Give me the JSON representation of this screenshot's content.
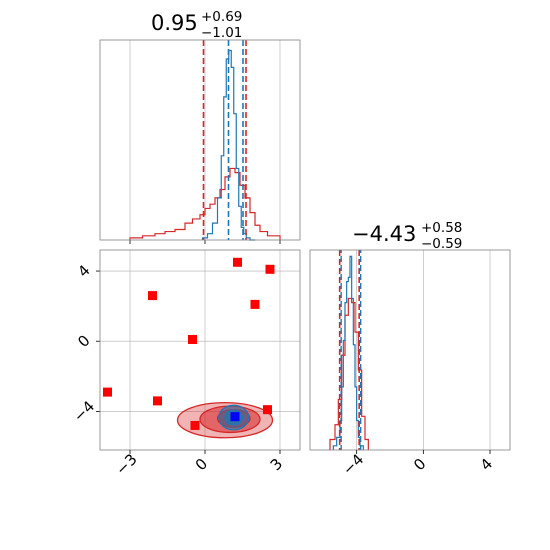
{
  "chart_data": {
    "type": "corner",
    "parameters": [
      {
        "title": {
          "median": "0.95",
          "plus": "+0.69",
          "minus": "−1.01"
        }
      },
      {
        "title": {
          "median": "−4.43",
          "plus": "+0.58",
          "minus": "−0.59"
        }
      }
    ],
    "xlim_param1": [
      -4.2,
      3.8
    ],
    "xlim_param2": [
      -6.8,
      5.2
    ],
    "ylim_param2": [
      -6.2,
      5.2
    ],
    "xticks_param1": [
      {
        "value": -3,
        "label": "−3"
      },
      {
        "value": 0,
        "label": "0"
      },
      {
        "value": 3,
        "label": "3"
      }
    ],
    "xticks_param2": [
      {
        "value": -4,
        "label": "−4"
      },
      {
        "value": 0,
        "label": "0"
      },
      {
        "value": 4,
        "label": "4"
      }
    ],
    "yticks_param2": [
      {
        "value": 4,
        "label": "4"
      },
      {
        "value": 0,
        "label": "0"
      },
      {
        "value": -4,
        "label": "−4"
      }
    ],
    "grid": true,
    "colors": {
      "blue": "#1f77b4",
      "red": "#d62728",
      "marker_red": "#ff0000",
      "marker_blue": "#0000ff",
      "grid": "#b0b0b0"
    },
    "param1_quantile_lines": {
      "red": [
        -0.06,
        1.64
      ],
      "blue": [
        0.94,
        1.52
      ]
    },
    "param2_quantile_lines": {
      "red": [
        -5.02,
        -3.85
      ],
      "blue": [
        -5.02,
        -3.85
      ]
    },
    "param1_hist_blue": {
      "bins": [
        -0.1,
        0.1,
        0.3,
        0.5,
        0.65,
        0.75,
        0.85,
        0.95,
        1.05,
        1.15,
        1.25,
        1.35,
        1.45,
        1.55,
        1.65,
        1.8,
        2.0
      ],
      "heights": [
        0.01,
        0.03,
        0.08,
        0.2,
        0.4,
        0.68,
        0.86,
        0.9,
        0.82,
        0.6,
        0.34,
        0.16,
        0.06,
        0.03,
        0.01,
        0.0
      ]
    },
    "param1_hist_red": {
      "bins": [
        -3.0,
        -2.5,
        -2.0,
        -1.6,
        -1.2,
        -0.8,
        -0.5,
        -0.2,
        0.0,
        0.2,
        0.4,
        0.6,
        0.8,
        1.0,
        1.2,
        1.4,
        1.6,
        1.8,
        2.0,
        2.2,
        2.5,
        3.0
      ],
      "heights": [
        0.01,
        0.02,
        0.03,
        0.04,
        0.05,
        0.08,
        0.1,
        0.12,
        0.15,
        0.17,
        0.2,
        0.24,
        0.3,
        0.34,
        0.32,
        0.26,
        0.2,
        0.13,
        0.07,
        0.04,
        0.02
      ]
    },
    "param2_hist_blue": {
      "bins": [
        -5.4,
        -5.2,
        -5.0,
        -4.9,
        -4.8,
        -4.7,
        -4.6,
        -4.5,
        -4.4,
        -4.3,
        -4.2,
        -4.1,
        -4.0,
        -3.9,
        -3.8,
        -3.6
      ],
      "heights": [
        0.02,
        0.06,
        0.14,
        0.3,
        0.52,
        0.7,
        0.8,
        0.82,
        0.92,
        0.72,
        0.5,
        0.3,
        0.14,
        0.06,
        0.02
      ]
    },
    "param2_hist_red": {
      "bins": [
        -5.6,
        -5.3,
        -5.1,
        -4.9,
        -4.7,
        -4.5,
        -4.3,
        -4.1,
        -3.9,
        -3.7,
        -3.5,
        -3.3
      ],
      "heights": [
        0.05,
        0.12,
        0.24,
        0.45,
        0.64,
        0.72,
        0.7,
        0.56,
        0.38,
        0.16,
        0.05
      ]
    },
    "red_markers": [
      {
        "x": 1.3,
        "y": 4.5
      },
      {
        "x": 2.6,
        "y": 4.1
      },
      {
        "x": -2.1,
        "y": 2.6
      },
      {
        "x": 2.0,
        "y": 2.1
      },
      {
        "x": -0.5,
        "y": 0.1
      },
      {
        "x": -3.9,
        "y": -2.9
      },
      {
        "x": -1.9,
        "y": -3.4
      },
      {
        "x": -0.4,
        "y": -4.8
      },
      {
        "x": 2.5,
        "y": -3.9
      }
    ],
    "blue_marker": {
      "x": 1.2,
      "y": -4.3
    },
    "contours_red": [
      {
        "cx": 0.8,
        "cy": -4.5,
        "rx": 1.9,
        "ry": 1.0,
        "opacity": 0.35
      },
      {
        "cx": 1.0,
        "cy": -4.45,
        "rx": 1.2,
        "ry": 0.75,
        "opacity": 0.55
      },
      {
        "cx": 1.15,
        "cy": -4.4,
        "rx": 0.65,
        "ry": 0.5,
        "opacity": 0.75
      }
    ],
    "contours_blue": [
      {
        "cx": 1.15,
        "cy": -4.35,
        "rx": 0.6,
        "ry": 0.7,
        "opacity": 0.55
      },
      {
        "cx": 1.15,
        "cy": -4.35,
        "rx": 0.35,
        "ry": 0.42,
        "opacity": 0.8
      }
    ]
  }
}
